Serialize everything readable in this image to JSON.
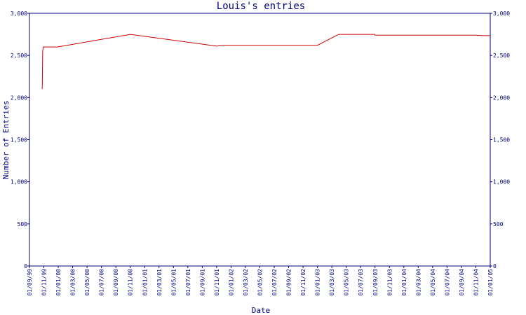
{
  "chart_data": {
    "type": "line",
    "title": "Louis's entries",
    "xlabel": "Date",
    "ylabel": "Number of Entries",
    "ylim": [
      0,
      3000
    ],
    "y_ticks": [
      0,
      500,
      1000,
      1500,
      2000,
      2500,
      3000
    ],
    "y_tick_labels": [
      "0",
      "500",
      "1,000",
      "1,500",
      "2,000",
      "2,500",
      "3,000"
    ],
    "x_range": [
      "1999-09-01",
      "2005-01-01"
    ],
    "x_tick_labels": [
      "01/09/99",
      "01/11/99",
      "01/01/00",
      "01/03/00",
      "01/05/00",
      "01/07/00",
      "01/09/00",
      "01/11/00",
      "01/01/01",
      "01/03/01",
      "01/05/01",
      "01/07/01",
      "01/09/01",
      "01/11/01",
      "01/01/02",
      "01/03/02",
      "01/05/02",
      "01/07/02",
      "01/09/02",
      "01/11/02",
      "01/01/03",
      "01/03/03",
      "01/05/03",
      "01/07/03",
      "01/09/03",
      "01/11/03",
      "01/01/04",
      "01/03/04",
      "01/05/04",
      "01/07/04",
      "01/09/04",
      "01/11/04",
      "01/01/05"
    ],
    "grid": false,
    "colors": {
      "axis": "#000080",
      "line": "#cc0000"
    },
    "series": [
      {
        "x": [
          "1999-10-25",
          "1999-10-27",
          "1999-10-29",
          "1999-12-28",
          "2000-11-01",
          "2001-11-01",
          "2001-12-01",
          "2003-01-01",
          "2003-04-01",
          "2003-09-01",
          "2003-09-02",
          "2004-11-01",
          "2004-12-01",
          "2005-01-01"
        ],
        "values": [
          2100,
          2550,
          2600,
          2600,
          2750,
          2610,
          2620,
          2620,
          2750,
          2750,
          2740,
          2740,
          2735,
          2735
        ]
      }
    ]
  }
}
